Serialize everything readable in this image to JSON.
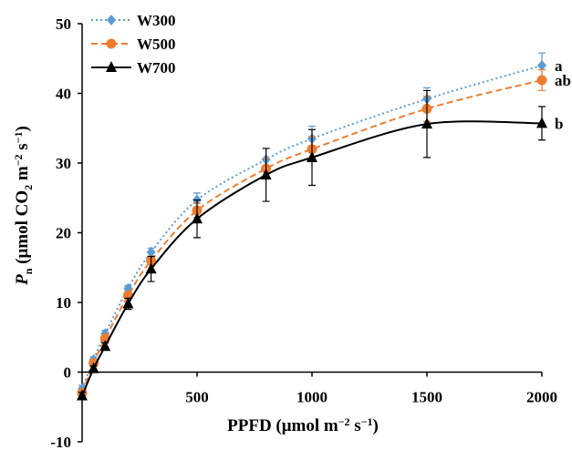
{
  "chart_data": {
    "type": "line",
    "x": [
      0,
      50,
      100,
      200,
      300,
      500,
      800,
      1000,
      1500,
      2000
    ],
    "xlim": [
      0,
      2000
    ],
    "xticks": [
      500,
      1000,
      1500,
      2000
    ],
    "ylim": [
      -10,
      50
    ],
    "yticks": [
      -10,
      0,
      10,
      20,
      30,
      40,
      50
    ],
    "x_label": [
      "PPFD (μmol m",
      "−2",
      " s",
      "−1",
      ")"
    ],
    "y_label": [
      "P",
      "n",
      " (μmol CO",
      "2",
      " m",
      "−2",
      " s",
      "−1",
      ")"
    ],
    "legend": "top-left",
    "series": [
      {
        "name": "W300",
        "color": "#5b9bd5",
        "line_style": "dotted",
        "marker": "diamond",
        "values": [
          -2.4,
          1.8,
          5.5,
          12,
          17.2,
          24.7,
          30.5,
          33.5,
          39.2,
          44
        ],
        "errors": [
          0.5,
          0.4,
          0.5,
          0.4,
          0.6,
          1,
          1.6,
          1.8,
          1.6,
          1.8
        ],
        "annotation": "a"
      },
      {
        "name": "W500",
        "color": "#ed7d31",
        "line_style": "dashed",
        "marker": "circle",
        "values": [
          -3,
          1.3,
          4.8,
          11,
          16,
          23.2,
          29.2,
          32,
          37.8,
          41.9
        ],
        "errors": [
          0.5,
          0.4,
          0.5,
          0.5,
          0.6,
          1,
          1.5,
          1.8,
          1.8,
          1.5
        ],
        "annotation": "ab"
      },
      {
        "name": "W700",
        "color": "#000000",
        "line_style": "solid",
        "marker": "triangle",
        "values": [
          -3.4,
          0.5,
          3.7,
          9.8,
          14.8,
          22,
          28.3,
          30.8,
          35.6,
          35.7
        ],
        "errors": [
          0.5,
          0.4,
          0.5,
          0.8,
          1.8,
          2.7,
          3.8,
          4,
          4.8,
          2.4
        ],
        "annotation": "b"
      }
    ]
  }
}
